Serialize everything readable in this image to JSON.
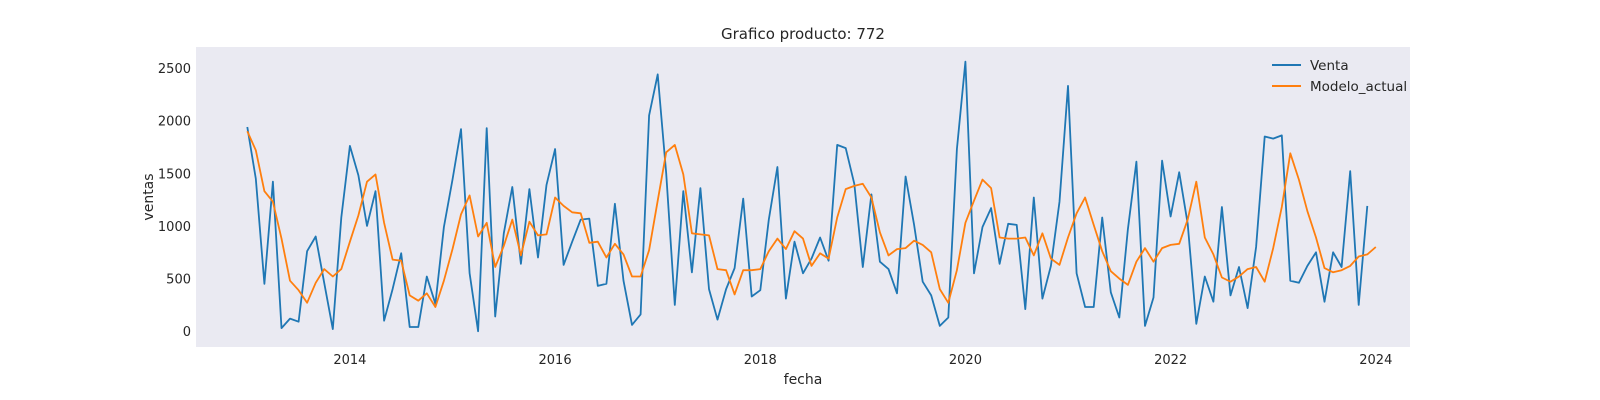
{
  "chart_data": {
    "type": "line",
    "title": "Grafico producto: 772",
    "xlabel": "fecha",
    "ylabel": "ventas",
    "x_start": "2013-01",
    "x_frequency": "monthly",
    "xlim": [
      "2012-07",
      "2024-05"
    ],
    "ylim": [
      -150,
      2700
    ],
    "x_ticks": [
      "2014",
      "2016",
      "2018",
      "2020",
      "2022",
      "2024"
    ],
    "y_ticks": [
      0,
      500,
      1000,
      1500,
      2000,
      2500
    ],
    "grid": false,
    "legend_position": "top-right",
    "background_color": "#eaeaf2",
    "series": [
      {
        "name": "Venta",
        "color": "#1f77b4",
        "values": [
          1940,
          1450,
          450,
          1420,
          30,
          120,
          90,
          760,
          900,
          460,
          20,
          1080,
          1760,
          1480,
          1000,
          1330,
          100,
          400,
          740,
          40,
          40,
          520,
          260,
          990,
          1440,
          1920,
          550,
          0,
          1930,
          140,
          930,
          1370,
          640,
          1350,
          700,
          1390,
          1730,
          630,
          850,
          1060,
          1070,
          430,
          450,
          1210,
          480,
          60,
          160,
          2050,
          2440,
          1500,
          250,
          1330,
          560,
          1360,
          400,
          110,
          400,
          600,
          1260,
          330,
          390,
          1060,
          1560,
          310,
          850,
          550,
          690,
          890,
          670,
          1770,
          1740,
          1400,
          610,
          1300,
          660,
          590,
          360,
          1470,
          1010,
          470,
          340,
          50,
          130,
          1730,
          2560,
          550,
          990,
          1170,
          640,
          1020,
          1010,
          210,
          1270,
          310,
          620,
          1230,
          2330,
          550,
          230,
          230,
          1080,
          370,
          130,
          970,
          1610,
          50,
          320,
          1620,
          1090,
          1510,
          1020,
          70,
          520,
          280,
          1180,
          340,
          610,
          220,
          800,
          1850,
          1830,
          1860,
          480,
          460,
          620,
          750,
          280,
          750,
          610,
          1520,
          250,
          1190
        ]
      },
      {
        "name": "Modelo_actual",
        "color": "#ff7f0e",
        "values": [
          1900,
          1720,
          1330,
          1230,
          880,
          480,
          390,
          270,
          460,
          590,
          520,
          590,
          850,
          1100,
          1420,
          1490,
          1030,
          680,
          670,
          340,
          290,
          360,
          230,
          480,
          780,
          1110,
          1290,
          900,
          1030,
          610,
          810,
          1060,
          720,
          1040,
          910,
          920,
          1270,
          1190,
          1130,
          1120,
          840,
          850,
          700,
          830,
          730,
          520,
          520,
          770,
          1240,
          1700,
          1770,
          1490,
          930,
          920,
          910,
          590,
          580,
          350,
          580,
          580,
          590,
          760,
          880,
          780,
          950,
          880,
          620,
          740,
          690,
          1080,
          1350,
          1380,
          1400,
          1270,
          940,
          720,
          780,
          790,
          860,
          820,
          750,
          400,
          270,
          580,
          1030,
          1240,
          1440,
          1360,
          890,
          880,
          880,
          890,
          720,
          930,
          690,
          630,
          890,
          1120,
          1270,
          1010,
          760,
          570,
          500,
          440,
          660,
          790,
          660,
          790,
          820,
          830,
          1060,
          1420,
          890,
          730,
          510,
          470,
          520,
          590,
          610,
          470,
          790,
          1180,
          1690,
          1440,
          1140,
          890,
          600,
          560,
          580,
          620,
          710,
          730,
          800
        ]
      }
    ]
  }
}
